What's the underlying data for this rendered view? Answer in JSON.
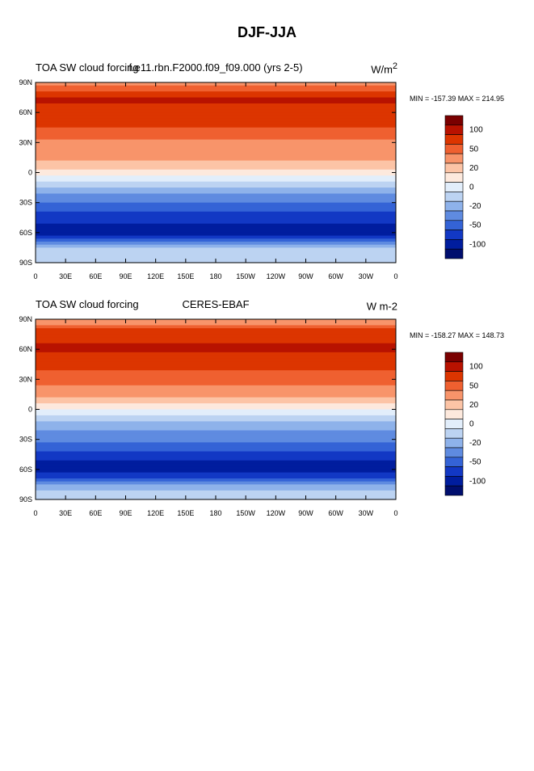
{
  "title": "DJF-JJA",
  "chart_data": [
    {
      "type": "heatmap",
      "left_title": "TOA SW cloud forcing",
      "center_title": "f.e11.rbn.F2000.f09_f09.000 (yrs 2-5)",
      "right_title": "W/m",
      "right_title_sup": "2",
      "stats": "MIN = -157.39 MAX = 214.95",
      "min": -157.39,
      "max": 214.95,
      "x_ticks": [
        "0",
        "30E",
        "60E",
        "90E",
        "120E",
        "150E",
        "180",
        "150W",
        "120W",
        "90W",
        "60W",
        "30W",
        "0"
      ],
      "y_ticks": [
        "90N",
        "60N",
        "30N",
        "0",
        "30S",
        "60S",
        "90S"
      ],
      "zonal_mean": {
        "lat": [
          90,
          75,
          60,
          45,
          30,
          15,
          0,
          -15,
          -30,
          -45,
          -60,
          -75,
          -90
        ],
        "value": [
          20,
          90,
          80,
          60,
          35,
          30,
          10,
          -15,
          -40,
          -75,
          -100,
          -10,
          -10
        ]
      }
    },
    {
      "type": "heatmap",
      "left_title": "TOA SW cloud forcing",
      "center_title": "CERES-EBAF",
      "right_title": "W m-2",
      "right_title_sup": "",
      "stats": "MIN = -158.27 MAX = 148.73",
      "min": -158.27,
      "max": 148.73,
      "x_ticks": [
        "0",
        "30E",
        "60E",
        "90E",
        "120E",
        "150E",
        "180",
        "150W",
        "120W",
        "90W",
        "60W",
        "30W",
        "0"
      ],
      "y_ticks": [
        "90N",
        "60N",
        "30N",
        "0",
        "30S",
        "60S",
        "90S"
      ],
      "zonal_mean": {
        "lat": [
          90,
          75,
          60,
          45,
          30,
          15,
          0,
          -15,
          -30,
          -45,
          -60,
          -75,
          -90
        ],
        "value": [
          20,
          80,
          90,
          70,
          45,
          30,
          5,
          -20,
          -35,
          -70,
          -110,
          -20,
          -10
        ]
      }
    }
  ],
  "colorbar": {
    "labels": [
      "100",
      "50",
      "20",
      "0",
      "-20",
      "-50",
      "-100"
    ],
    "colors": [
      "#7a0000",
      "#b81200",
      "#dc3500",
      "#ef6030",
      "#f8946a",
      "#fcc4a6",
      "#fde9dd",
      "#e2eefb",
      "#bcd3f2",
      "#8eb2ea",
      "#5f8be0",
      "#3463d6",
      "#1238c4",
      "#001d9e",
      "#000e6e"
    ]
  }
}
